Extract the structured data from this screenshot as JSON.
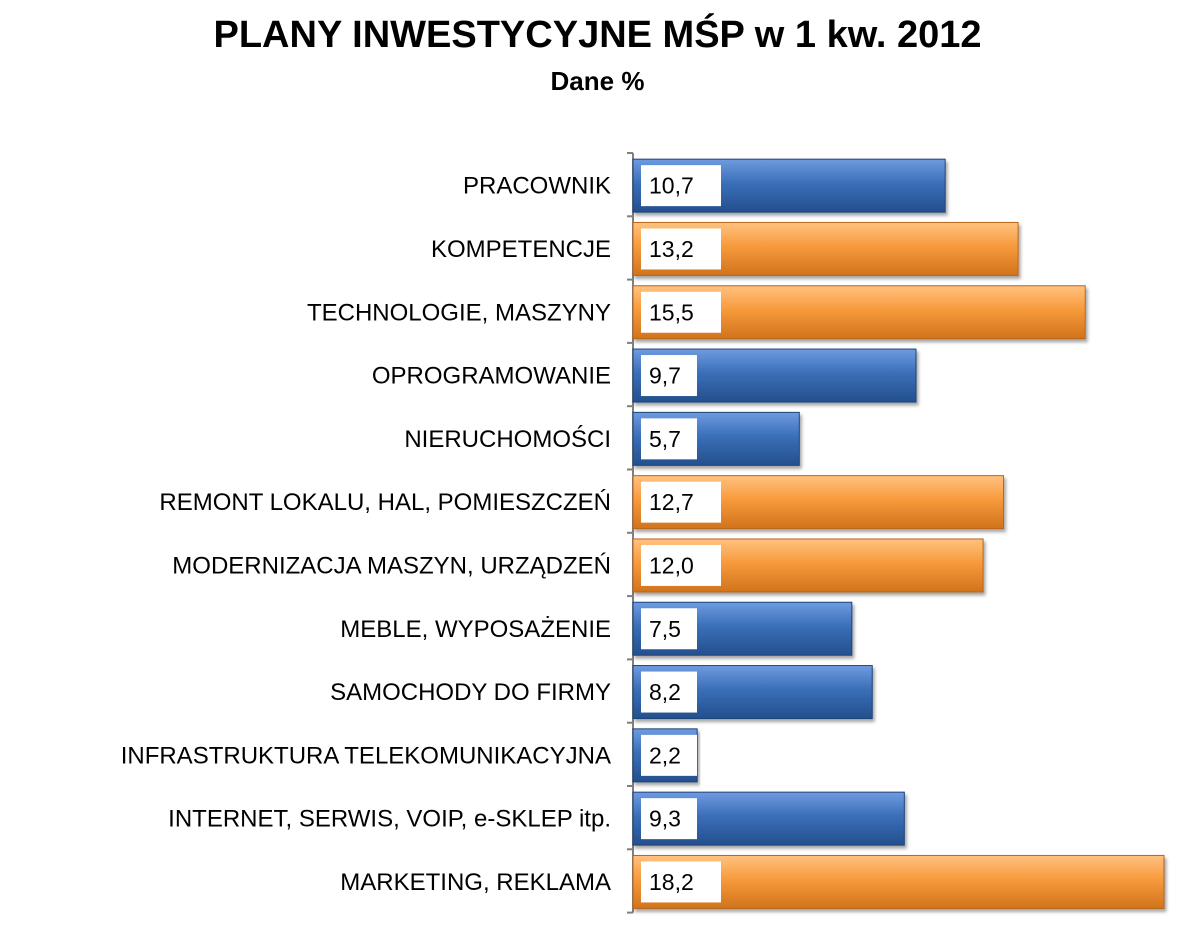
{
  "chart_data": {
    "type": "bar",
    "orientation": "horizontal",
    "title": "PLANY INWESTYCYJNE MŚP w 1 kw. 2012",
    "subtitle": "Dane %",
    "categories": [
      "PRACOWNIK",
      "KOMPETENCJE",
      "TECHNOLOGIE, MASZYNY",
      "OPROGRAMOWANIE",
      "NIERUCHOMOŚCI",
      "REMONT LOKALU, HAL, POMIESZCZEŃ",
      "MODERNIZACJA MASZYN, URZĄDZEŃ",
      "MEBLE, WYPOSAŻENIE",
      "SAMOCHODY DO FIRMY",
      "INFRASTRUKTURA TELEKOMUNIKACYJNA",
      "INTERNET, SERWIS, VOIP, e-SKLEP itp.",
      "MARKETING, REKLAMA"
    ],
    "values": [
      10.7,
      13.2,
      15.5,
      9.7,
      5.7,
      12.7,
      12.0,
      7.5,
      8.2,
      2.2,
      9.3,
      18.2
    ],
    "value_labels": [
      "10,7",
      "13,2",
      "15,5",
      "9,7",
      "5,7",
      "12,7",
      "12,0",
      "7,5",
      "8,2",
      "2,2",
      "9,3",
      "18,2"
    ],
    "bar_colors": [
      "blue",
      "orange",
      "orange",
      "blue",
      "blue",
      "orange",
      "orange",
      "blue",
      "blue",
      "blue",
      "blue",
      "orange"
    ],
    "colors": {
      "blue": "#3a6fb8",
      "orange": "#f79a3c"
    },
    "xlim": [
      0,
      18.2
    ],
    "grid": false,
    "legend": "none"
  }
}
